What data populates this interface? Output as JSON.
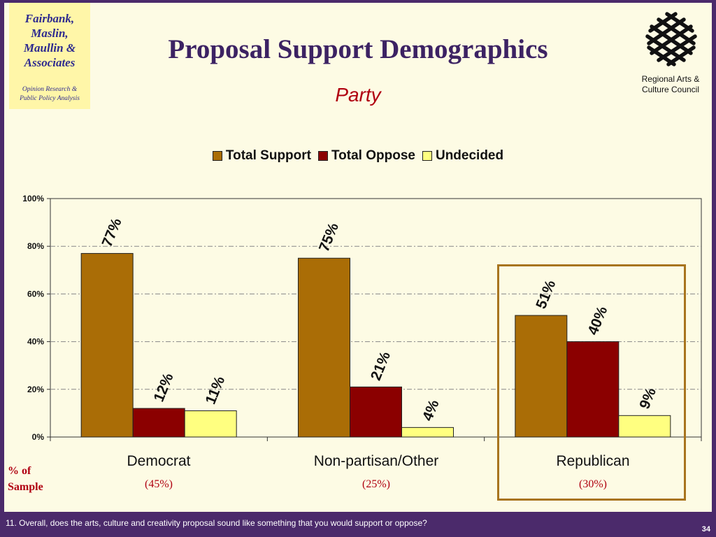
{
  "branding": {
    "firm_name": "Fairbank,\nMaslin,\nMaullin &\nAssociates",
    "firm_tagline": "Opinion Research &\nPublic Policy Analysis",
    "client_name": "Regional Arts &\nCulture Council"
  },
  "title": "Proposal Support Demographics",
  "subtitle": "Party",
  "sample_caption": "% of\nSample",
  "footnote": "11. Overall, does the arts, culture and creativity proposal sound like something that you would support or oppose?",
  "page_number": "34",
  "colors": {
    "background": "#fdfbe4",
    "frame": "#4b2a6b",
    "support": "#aa6d06",
    "oppose": "#8b0000",
    "undecided": "#ffff80",
    "highlight": "#a8741e"
  },
  "chart_data": {
    "type": "bar",
    "categories": [
      "Democrat",
      "Non-partisan/Other",
      "Republican"
    ],
    "sample_shares": [
      "(45%)",
      "(25%)",
      "(30%)"
    ],
    "series": [
      {
        "name": "Total Support",
        "values": [
          77,
          75,
          51
        ],
        "labels": [
          "77%",
          "75%",
          "51%"
        ]
      },
      {
        "name": "Total Oppose",
        "values": [
          12,
          21,
          40
        ],
        "labels": [
          "12%",
          "21%",
          "40%"
        ]
      },
      {
        "name": "Undecided",
        "values": [
          11,
          4,
          9
        ],
        "labels": [
          "11%",
          "4%",
          "9%"
        ]
      }
    ],
    "y_ticks": [
      "0%",
      "20%",
      "40%",
      "60%",
      "80%",
      "100%"
    ],
    "ylim": [
      0,
      100
    ],
    "grid": true,
    "legend_position": "top",
    "highlighted_category": "Republican"
  }
}
